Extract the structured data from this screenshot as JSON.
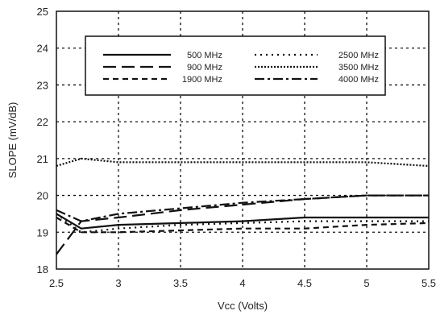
{
  "chart_data": {
    "type": "line",
    "xlabel": "Vcc (Volts)",
    "ylabel": "SLOPE (mV/dB)",
    "xlim": [
      2.5,
      5.5
    ],
    "ylim": [
      18,
      25
    ],
    "xticks": [
      2.5,
      3,
      3.5,
      4,
      4.5,
      5,
      5.5
    ],
    "yticks": [
      18,
      19,
      20,
      21,
      22,
      23,
      24,
      25
    ],
    "xtick_labels": [
      "2.5",
      "3",
      "3.5",
      "4",
      "4.5",
      "5",
      "5.5"
    ],
    "ytick_labels": [
      "18",
      "19",
      "20",
      "21",
      "22",
      "23",
      "24",
      "25"
    ],
    "grid": true,
    "legend_position": "top",
    "series": [
      {
        "name": "500 MHz",
        "style": "solid",
        "x": [
          2.5,
          2.7,
          3,
          3.5,
          4,
          4.5,
          5,
          5.5
        ],
        "y": [
          19.5,
          19.1,
          19.2,
          19.25,
          19.3,
          19.4,
          19.4,
          19.4
        ]
      },
      {
        "name": "900 MHz",
        "style": "longdash",
        "x": [
          2.5,
          2.7,
          3,
          3.5,
          4,
          4.5,
          5,
          5.5
        ],
        "y": [
          18.4,
          19.3,
          19.4,
          19.6,
          19.75,
          19.9,
          20.0,
          20.0
        ]
      },
      {
        "name": "1900 MHz",
        "style": "dash",
        "x": [
          2.5,
          2.7,
          3,
          3.5,
          4,
          4.5,
          5,
          5.5
        ],
        "y": [
          19.4,
          19.0,
          19.0,
          19.05,
          19.1,
          19.1,
          19.2,
          19.25
        ]
      },
      {
        "name": "2500 MHz",
        "style": "dot",
        "x": [
          2.5,
          2.7,
          3,
          3.5,
          4,
          4.5,
          5,
          5.5
        ],
        "y": [
          19.5,
          19.0,
          19.1,
          19.2,
          19.25,
          19.3,
          19.3,
          19.3
        ]
      },
      {
        "name": "3500 MHz",
        "style": "finedot",
        "x": [
          2.5,
          2.7,
          3,
          3.5,
          4,
          4.5,
          5,
          5.5
        ],
        "y": [
          20.8,
          21.0,
          20.9,
          20.9,
          20.9,
          20.9,
          20.9,
          20.8
        ]
      },
      {
        "name": "4000 MHz",
        "style": "dashdot",
        "x": [
          2.5,
          2.7,
          3,
          3.5,
          4,
          4.5,
          5,
          5.5
        ],
        "y": [
          19.6,
          19.3,
          19.5,
          19.65,
          19.8,
          19.9,
          20.0,
          20.0
        ]
      }
    ]
  }
}
